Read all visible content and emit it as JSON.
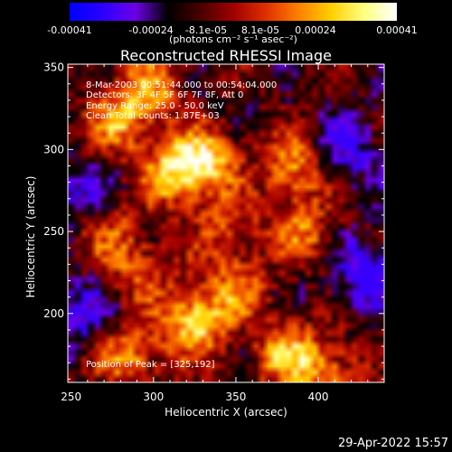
{
  "colorbar": {
    "ticks": [
      "-0.00041",
      "-0.00024",
      "-8.1e-05",
      "8.1e-05",
      "0.00024",
      "0.00041"
    ],
    "tick_values": [
      -0.00041,
      -0.00024,
      -8.1e-05,
      8.1e-05,
      0.00024,
      0.00041
    ],
    "unit": "(photons cm⁻² s⁻¹ asec⁻²)",
    "range": [
      -0.00041,
      0.00041
    ],
    "colors": [
      "#0000ff",
      "#2a00ff",
      "#6f00e8",
      "#000000",
      "#4a0000",
      "#a00000",
      "#e03000",
      "#ff8000",
      "#ffd000",
      "#ffff80",
      "#ffffff"
    ]
  },
  "chart_data": {
    "type": "heatmap",
    "title": "Reconstructed RHESSI Image",
    "xlabel": "Heliocentric X (arcsec)",
    "ylabel": "Heliocentric Y (arcsec)",
    "xlim": [
      248,
      440
    ],
    "ylim": [
      158,
      352
    ],
    "xticks": [
      250,
      300,
      350,
      400
    ],
    "yticks": [
      200,
      250,
      300,
      350
    ],
    "peaks": [
      {
        "x": 330,
        "y": 292,
        "level": 1.0
      },
      {
        "x": 325,
        "y": 195,
        "level": 0.95
      },
      {
        "x": 280,
        "y": 318,
        "level": 0.75
      },
      {
        "x": 310,
        "y": 285,
        "level": 0.7
      },
      {
        "x": 385,
        "y": 290,
        "level": 0.75
      },
      {
        "x": 390,
        "y": 250,
        "level": 0.6
      },
      {
        "x": 285,
        "y": 175,
        "level": 0.7
      },
      {
        "x": 380,
        "y": 175,
        "level": 0.75
      },
      {
        "x": 405,
        "y": 165,
        "level": 0.6
      },
      {
        "x": 270,
        "y": 255,
        "level": 0.55
      },
      {
        "x": 290,
        "y": 228,
        "level": 0.5
      },
      {
        "x": 350,
        "y": 215,
        "level": 0.55
      },
      {
        "x": 300,
        "y": 340,
        "level": 0.6
      },
      {
        "x": 345,
        "y": 250,
        "level": 0.45
      }
    ],
    "troughs": [
      {
        "x": 260,
        "y": 270,
        "level": -0.6
      },
      {
        "x": 430,
        "y": 225,
        "level": -0.7
      },
      {
        "x": 415,
        "y": 300,
        "level": -0.55
      },
      {
        "x": 255,
        "y": 200,
        "level": -0.5
      }
    ]
  },
  "annotations": {
    "time_range": "8-Mar-2003 00:51:44.000 to 00:54:04.000",
    "detectors": "Detectors: 3F 4F 5F 6F 7F 8F, Att 0",
    "energy": "Energy Range: 25.0 - 50.0 keV",
    "clean": "Clean    Total counts: 1.87E+03",
    "position": "Position of Peak = [325,192]"
  },
  "timestamp": "29-Apr-2022 15:57"
}
